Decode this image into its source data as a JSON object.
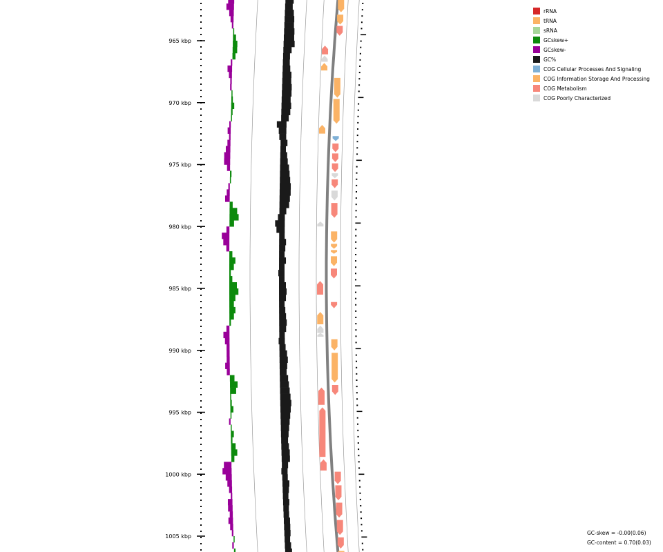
{
  "axis": {
    "ticks": [
      {
        "pos": 965,
        "label": "965 kbp"
      },
      {
        "pos": 970,
        "label": "970 kbp"
      },
      {
        "pos": 975,
        "label": "975 kbp"
      },
      {
        "pos": 980,
        "label": "980 kbp"
      },
      {
        "pos": 985,
        "label": "985 kbp"
      },
      {
        "pos": 990,
        "label": "990 kbp"
      },
      {
        "pos": 995,
        "label": "995 kbp"
      },
      {
        "pos": 1000,
        "label": "1000 kbp"
      },
      {
        "pos": 1005,
        "label": "1005 kbp"
      }
    ]
  },
  "legend": [
    {
      "label": "rRNA",
      "color": "#d62728"
    },
    {
      "label": "tRNA",
      "color": "#fbb366"
    },
    {
      "label": "sRNA",
      "color": "#a6d69a"
    },
    {
      "label": "GCskew+",
      "color": "#0c8a0c"
    },
    {
      "label": "GCskew-",
      "color": "#990099"
    },
    {
      "label": "GC%",
      "color": "#1a1a1a"
    },
    {
      "label": "COG Cellular Processes And Signaling",
      "color": "#7fb0d6"
    },
    {
      "label": "COG Information Storage And Processing",
      "color": "#fbb366"
    },
    {
      "label": "COG Metabolism",
      "color": "#f7877a"
    },
    {
      "label": "COG Poorly Characterized",
      "color": "#d9d9d9"
    }
  ],
  "stats": {
    "gc_skew": "GC-skew = -0.00(0.06)",
    "gc_content": "GC-content = 0.70(0.03)"
  },
  "features": [
    {
      "kbp": 961.2,
      "len": 1.5,
      "strand": "+",
      "track": "outer",
      "cat": "info"
    },
    {
      "kbp": 962.9,
      "len": 0.8,
      "strand": "+",
      "track": "outer",
      "cat": "info"
    },
    {
      "kbp": 963.8,
      "len": 0.8,
      "strand": "+",
      "track": "outer",
      "cat": "metab"
    },
    {
      "kbp": 965.4,
      "len": 0.7,
      "strand": "-",
      "track": "inner",
      "cat": "metab"
    },
    {
      "kbp": 966.2,
      "len": 0.5,
      "strand": "-",
      "track": "inner",
      "cat": "poor"
    },
    {
      "kbp": 966.8,
      "len": 0.6,
      "strand": "-",
      "track": "inner",
      "cat": "info"
    },
    {
      "kbp": 968.0,
      "len": 1.6,
      "strand": "+",
      "track": "outer",
      "cat": "info"
    },
    {
      "kbp": 969.7,
      "len": 2.0,
      "strand": "+",
      "track": "outer",
      "cat": "info"
    },
    {
      "kbp": 971.8,
      "len": 0.7,
      "strand": "-",
      "track": "inner",
      "cat": "info"
    },
    {
      "kbp": 972.7,
      "len": 0.4,
      "strand": "+",
      "track": "outer",
      "cat": "cell"
    },
    {
      "kbp": 973.3,
      "len": 0.7,
      "strand": "+",
      "track": "outer",
      "cat": "metab"
    },
    {
      "kbp": 974.1,
      "len": 0.7,
      "strand": "+",
      "track": "outer",
      "cat": "metab"
    },
    {
      "kbp": 974.9,
      "len": 0.7,
      "strand": "+",
      "track": "outer",
      "cat": "metab"
    },
    {
      "kbp": 975.7,
      "len": 0.4,
      "strand": "+",
      "track": "outer",
      "cat": "poor"
    },
    {
      "kbp": 976.2,
      "len": 0.7,
      "strand": "+",
      "track": "outer",
      "cat": "metab"
    },
    {
      "kbp": 977.1,
      "len": 0.8,
      "strand": "+",
      "track": "outer",
      "cat": "poor"
    },
    {
      "kbp": 978.1,
      "len": 1.2,
      "strand": "+",
      "track": "outer",
      "cat": "metab"
    },
    {
      "kbp": 979.6,
      "len": 0.4,
      "strand": "-",
      "track": "inner",
      "cat": "poor"
    },
    {
      "kbp": 980.4,
      "len": 0.9,
      "strand": "+",
      "track": "outer",
      "cat": "info"
    },
    {
      "kbp": 981.4,
      "len": 0.4,
      "strand": "+",
      "track": "outer",
      "cat": "info"
    },
    {
      "kbp": 981.9,
      "len": 0.3,
      "strand": "+",
      "track": "outer",
      "cat": "info"
    },
    {
      "kbp": 982.4,
      "len": 0.8,
      "strand": "+",
      "track": "outer",
      "cat": "info"
    },
    {
      "kbp": 983.4,
      "len": 0.8,
      "strand": "+",
      "track": "outer",
      "cat": "metab"
    },
    {
      "kbp": 984.4,
      "len": 1.1,
      "strand": "-",
      "track": "inner",
      "cat": "metab"
    },
    {
      "kbp": 986.1,
      "len": 0.5,
      "strand": "+",
      "track": "outer",
      "cat": "metab"
    },
    {
      "kbp": 986.9,
      "len": 1.0,
      "strand": "-",
      "track": "inner",
      "cat": "info"
    },
    {
      "kbp": 988.0,
      "len": 0.6,
      "strand": "-",
      "track": "inner",
      "cat": "poor"
    },
    {
      "kbp": 988.6,
      "len": 0.3,
      "strand": "-",
      "track": "inner",
      "cat": "poor"
    },
    {
      "kbp": 989.1,
      "len": 0.9,
      "strand": "+",
      "track": "outer",
      "cat": "info"
    },
    {
      "kbp": 990.2,
      "len": 2.4,
      "strand": "+",
      "track": "outer",
      "cat": "info"
    },
    {
      "kbp": 992.8,
      "len": 0.8,
      "strand": "+",
      "track": "outer",
      "cat": "metab"
    },
    {
      "kbp": 993.0,
      "len": 1.4,
      "strand": "-",
      "track": "inner",
      "cat": "metab"
    },
    {
      "kbp": 994.6,
      "len": 4.0,
      "strand": "-",
      "track": "inner",
      "cat": "metab"
    },
    {
      "kbp": 998.8,
      "len": 0.9,
      "strand": "-",
      "track": "inner",
      "cat": "metab"
    },
    {
      "kbp": 999.8,
      "len": 1.0,
      "strand": "+",
      "track": "outer",
      "cat": "metab"
    },
    {
      "kbp": 1000.9,
      "len": 1.2,
      "strand": "+",
      "track": "outer",
      "cat": "metab"
    },
    {
      "kbp": 1002.3,
      "len": 1.2,
      "strand": "+",
      "track": "outer",
      "cat": "metab"
    },
    {
      "kbp": 1003.7,
      "len": 1.2,
      "strand": "+",
      "track": "outer",
      "cat": "metab"
    },
    {
      "kbp": 1005.1,
      "len": 0.9,
      "strand": "+",
      "track": "outer",
      "cat": "metab"
    },
    {
      "kbp": 1006.2,
      "len": 0.5,
      "strand": "+",
      "track": "outer",
      "cat": "info"
    }
  ],
  "gc_content_profile": [
    {
      "kbp": 961.0,
      "v": 0.72
    },
    {
      "kbp": 961.5,
      "v": 0.7
    },
    {
      "kbp": 962.0,
      "v": 0.74
    },
    {
      "kbp": 962.5,
      "v": 0.73
    },
    {
      "kbp": 963.0,
      "v": 0.75
    },
    {
      "kbp": 963.5,
      "v": 0.76
    },
    {
      "kbp": 964.0,
      "v": 0.76
    },
    {
      "kbp": 964.5,
      "v": 0.77
    },
    {
      "kbp": 965.0,
      "v": 0.77
    },
    {
      "kbp": 965.5,
      "v": 0.78
    },
    {
      "kbp": 966.0,
      "v": 0.74
    },
    {
      "kbp": 966.5,
      "v": 0.72
    },
    {
      "kbp": 967.0,
      "v": 0.72
    },
    {
      "kbp": 967.5,
      "v": 0.73
    },
    {
      "kbp": 968.0,
      "v": 0.75
    },
    {
      "kbp": 968.5,
      "v": 0.75
    },
    {
      "kbp": 969.0,
      "v": 0.76
    },
    {
      "kbp": 969.5,
      "v": 0.76
    },
    {
      "kbp": 970.0,
      "v": 0.75
    },
    {
      "kbp": 970.5,
      "v": 0.76
    },
    {
      "kbp": 971.0,
      "v": 0.75
    },
    {
      "kbp": 971.5,
      "v": 0.73
    },
    {
      "kbp": 972.0,
      "v": 0.64
    },
    {
      "kbp": 972.5,
      "v": 0.67
    },
    {
      "kbp": 973.0,
      "v": 0.68
    },
    {
      "kbp": 973.5,
      "v": 0.72
    },
    {
      "kbp": 974.0,
      "v": 0.7
    },
    {
      "kbp": 974.5,
      "v": 0.72
    },
    {
      "kbp": 975.0,
      "v": 0.73
    },
    {
      "kbp": 975.5,
      "v": 0.75
    },
    {
      "kbp": 976.0,
      "v": 0.76
    },
    {
      "kbp": 976.5,
      "v": 0.77
    },
    {
      "kbp": 977.0,
      "v": 0.78
    },
    {
      "kbp": 977.5,
      "v": 0.78
    },
    {
      "kbp": 978.0,
      "v": 0.77
    },
    {
      "kbp": 978.5,
      "v": 0.76
    },
    {
      "kbp": 979.0,
      "v": 0.72
    },
    {
      "kbp": 979.5,
      "v": 0.68
    },
    {
      "kbp": 980.0,
      "v": 0.64
    },
    {
      "kbp": 980.5,
      "v": 0.66
    },
    {
      "kbp": 981.0,
      "v": 0.7
    },
    {
      "kbp": 981.5,
      "v": 0.72
    },
    {
      "kbp": 982.0,
      "v": 0.71
    },
    {
      "kbp": 982.5,
      "v": 0.7
    },
    {
      "kbp": 983.0,
      "v": 0.72
    },
    {
      "kbp": 983.5,
      "v": 0.7
    },
    {
      "kbp": 984.0,
      "v": 0.69
    },
    {
      "kbp": 984.5,
      "v": 0.7
    },
    {
      "kbp": 985.0,
      "v": 0.72
    },
    {
      "kbp": 985.5,
      "v": 0.73
    },
    {
      "kbp": 986.0,
      "v": 0.72
    },
    {
      "kbp": 986.5,
      "v": 0.7
    },
    {
      "kbp": 987.0,
      "v": 0.71
    },
    {
      "kbp": 987.5,
      "v": 0.72
    },
    {
      "kbp": 988.0,
      "v": 0.73
    },
    {
      "kbp": 988.5,
      "v": 0.72
    },
    {
      "kbp": 989.0,
      "v": 0.7
    },
    {
      "kbp": 989.5,
      "v": 0.69
    },
    {
      "kbp": 990.0,
      "v": 0.71
    },
    {
      "kbp": 990.5,
      "v": 0.73
    },
    {
      "kbp": 991.0,
      "v": 0.74
    },
    {
      "kbp": 991.5,
      "v": 0.73
    },
    {
      "kbp": 992.0,
      "v": 0.72
    },
    {
      "kbp": 992.5,
      "v": 0.74
    },
    {
      "kbp": 993.0,
      "v": 0.75
    },
    {
      "kbp": 993.5,
      "v": 0.76
    },
    {
      "kbp": 994.0,
      "v": 0.77
    },
    {
      "kbp": 994.5,
      "v": 0.78
    },
    {
      "kbp": 995.0,
      "v": 0.77
    },
    {
      "kbp": 995.5,
      "v": 0.76
    },
    {
      "kbp": 996.0,
      "v": 0.75
    },
    {
      "kbp": 996.5,
      "v": 0.74
    },
    {
      "kbp": 997.0,
      "v": 0.73
    },
    {
      "kbp": 997.5,
      "v": 0.72
    },
    {
      "kbp": 998.0,
      "v": 0.73
    },
    {
      "kbp": 998.5,
      "v": 0.74
    },
    {
      "kbp": 999.0,
      "v": 0.74
    },
    {
      "kbp": 999.5,
      "v": 0.71
    },
    {
      "kbp": 1000.0,
      "v": 0.69
    },
    {
      "kbp": 1000.5,
      "v": 0.7
    },
    {
      "kbp": 1001.0,
      "v": 0.72
    },
    {
      "kbp": 1001.5,
      "v": 0.71
    },
    {
      "kbp": 1002.0,
      "v": 0.7
    },
    {
      "kbp": 1002.5,
      "v": 0.71
    },
    {
      "kbp": 1003.0,
      "v": 0.7
    },
    {
      "kbp": 1003.5,
      "v": 0.7
    },
    {
      "kbp": 1004.0,
      "v": 0.71
    },
    {
      "kbp": 1004.5,
      "v": 0.71
    },
    {
      "kbp": 1005.0,
      "v": 0.71
    },
    {
      "kbp": 1005.5,
      "v": 0.7
    },
    {
      "kbp": 1006.0,
      "v": 0.71
    },
    {
      "kbp": 1006.5,
      "v": 0.72
    }
  ],
  "gc_skew_profile": [
    {
      "kbp": 961.0,
      "v": -0.05
    },
    {
      "kbp": 961.5,
      "v": -0.06
    },
    {
      "kbp": 962.0,
      "v": -0.04
    },
    {
      "kbp": 962.5,
      "v": -0.05
    },
    {
      "kbp": 963.0,
      "v": -0.03
    },
    {
      "kbp": 963.5,
      "v": -0.02
    },
    {
      "kbp": 964.0,
      "v": -0.01
    },
    {
      "kbp": 964.5,
      "v": 0.0
    },
    {
      "kbp": 965.0,
      "v": 0.02
    },
    {
      "kbp": 965.5,
      "v": 0.03
    },
    {
      "kbp": 966.0,
      "v": 0.03
    },
    {
      "kbp": 966.5,
      "v": 0.02
    },
    {
      "kbp": 967.0,
      "v": -0.01
    },
    {
      "kbp": 967.5,
      "v": -0.03
    },
    {
      "kbp": 968.0,
      "v": -0.02
    },
    {
      "kbp": 968.5,
      "v": -0.01
    },
    {
      "kbp": 969.0,
      "v": -0.01
    },
    {
      "kbp": 969.5,
      "v": 0.0
    },
    {
      "kbp": 970.0,
      "v": 0.01
    },
    {
      "kbp": 970.5,
      "v": 0.02
    },
    {
      "kbp": 971.0,
      "v": 0.01
    },
    {
      "kbp": 971.5,
      "v": 0.0
    },
    {
      "kbp": 972.0,
      "v": -0.01
    },
    {
      "kbp": 972.5,
      "v": -0.02
    },
    {
      "kbp": 973.0,
      "v": -0.01
    },
    {
      "kbp": 973.5,
      "v": -0.02
    },
    {
      "kbp": 974.0,
      "v": -0.03
    },
    {
      "kbp": 974.5,
      "v": -0.04
    },
    {
      "kbp": 975.0,
      "v": -0.04
    },
    {
      "kbp": 975.5,
      "v": -0.02
    },
    {
      "kbp": 976.0,
      "v": 0.01
    },
    {
      "kbp": 976.5,
      "v": 0.0
    },
    {
      "kbp": 977.0,
      "v": -0.01
    },
    {
      "kbp": 977.5,
      "v": -0.02
    },
    {
      "kbp": 978.0,
      "v": -0.03
    },
    {
      "kbp": 978.5,
      "v": 0.02
    },
    {
      "kbp": 979.0,
      "v": 0.05
    },
    {
      "kbp": 979.5,
      "v": 0.06
    },
    {
      "kbp": 980.0,
      "v": 0.03
    },
    {
      "kbp": 980.5,
      "v": -0.02
    },
    {
      "kbp": 981.0,
      "v": -0.05
    },
    {
      "kbp": 981.5,
      "v": -0.04
    },
    {
      "kbp": 982.0,
      "v": -0.02
    },
    {
      "kbp": 982.5,
      "v": 0.02
    },
    {
      "kbp": 983.0,
      "v": 0.04
    },
    {
      "kbp": 983.5,
      "v": 0.03
    },
    {
      "kbp": 984.0,
      "v": 0.01
    },
    {
      "kbp": 984.5,
      "v": 0.02
    },
    {
      "kbp": 985.0,
      "v": 0.05
    },
    {
      "kbp": 985.5,
      "v": 0.06
    },
    {
      "kbp": 986.0,
      "v": 0.04
    },
    {
      "kbp": 986.5,
      "v": 0.03
    },
    {
      "kbp": 987.0,
      "v": 0.04
    },
    {
      "kbp": 987.5,
      "v": 0.03
    },
    {
      "kbp": 988.0,
      "v": 0.01
    },
    {
      "kbp": 988.5,
      "v": -0.02
    },
    {
      "kbp": 989.0,
      "v": -0.04
    },
    {
      "kbp": 989.5,
      "v": -0.03
    },
    {
      "kbp": 990.0,
      "v": -0.02
    },
    {
      "kbp": 990.5,
      "v": -0.02
    },
    {
      "kbp": 991.0,
      "v": -0.02
    },
    {
      "kbp": 991.5,
      "v": -0.03
    },
    {
      "kbp": 992.0,
      "v": -0.02
    },
    {
      "kbp": 992.5,
      "v": 0.03
    },
    {
      "kbp": 993.0,
      "v": 0.05
    },
    {
      "kbp": 993.5,
      "v": 0.04
    },
    {
      "kbp": 994.0,
      "v": 0.0
    },
    {
      "kbp": 994.5,
      "v": 0.01
    },
    {
      "kbp": 995.0,
      "v": 0.02
    },
    {
      "kbp": 995.5,
      "v": 0.0
    },
    {
      "kbp": 996.0,
      "v": -0.01
    },
    {
      "kbp": 996.5,
      "v": 0.0
    },
    {
      "kbp": 997.0,
      "v": 0.02
    },
    {
      "kbp": 997.5,
      "v": 0.01
    },
    {
      "kbp": 998.0,
      "v": 0.03
    },
    {
      "kbp": 998.5,
      "v": 0.04
    },
    {
      "kbp": 999.0,
      "v": 0.02
    },
    {
      "kbp": 999.5,
      "v": -0.05
    },
    {
      "kbp": 1000.0,
      "v": -0.06
    },
    {
      "kbp": 1000.5,
      "v": -0.04
    },
    {
      "kbp": 1001.0,
      "v": -0.03
    },
    {
      "kbp": 1001.5,
      "v": -0.02
    },
    {
      "kbp": 1002.0,
      "v": -0.01
    },
    {
      "kbp": 1002.5,
      "v": -0.03
    },
    {
      "kbp": 1003.0,
      "v": -0.03
    },
    {
      "kbp": 1003.5,
      "v": -0.02
    },
    {
      "kbp": 1004.0,
      "v": -0.03
    },
    {
      "kbp": 1004.5,
      "v": -0.02
    },
    {
      "kbp": 1005.0,
      "v": -0.01
    },
    {
      "kbp": 1005.5,
      "v": 0.0
    },
    {
      "kbp": 1006.0,
      "v": -0.01
    },
    {
      "kbp": 1006.5,
      "v": 0.01
    }
  ]
}
